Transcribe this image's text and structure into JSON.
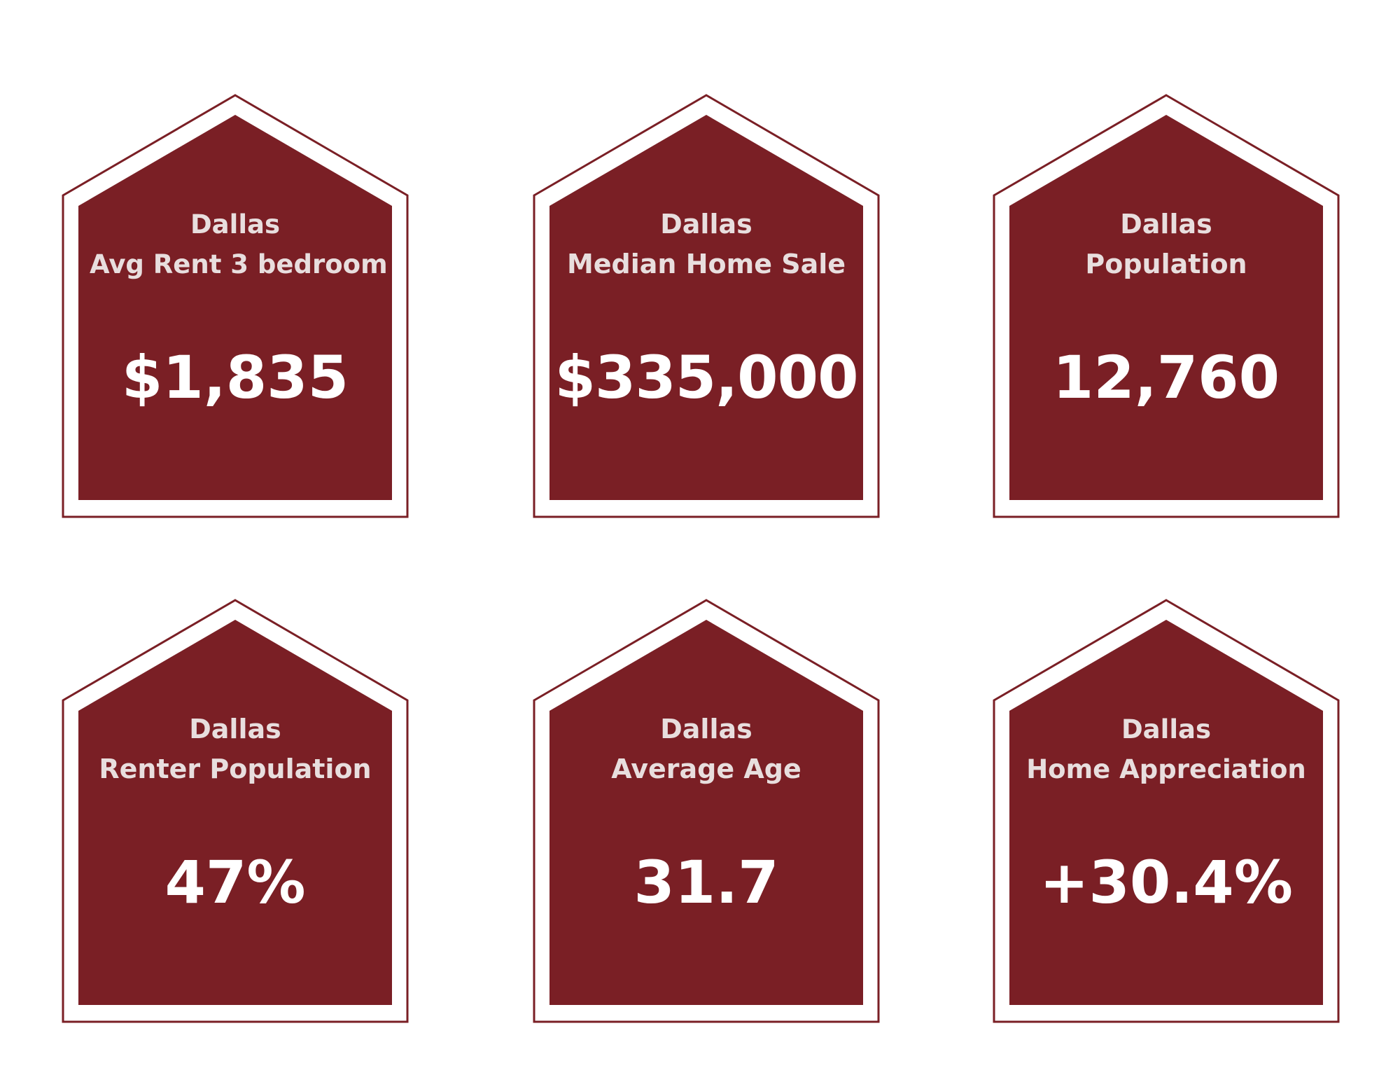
{
  "colors": {
    "accent": "#7a1f25",
    "label_text": "#e8dede",
    "value_text": "#ffffff",
    "background": "#ffffff"
  },
  "cards": [
    {
      "city": "Dallas",
      "metric": "Avg Rent 3 bedroom",
      "value": "$1,835"
    },
    {
      "city": "Dallas",
      "metric": "Median Home Sale",
      "value": "$335,000"
    },
    {
      "city": "Dallas",
      "metric": "Population",
      "value": "12,760"
    },
    {
      "city": "Dallas",
      "metric": "Renter Population",
      "value": "47%"
    },
    {
      "city": "Dallas",
      "metric": "Average Age",
      "value": "31.7"
    },
    {
      "city": "Dallas",
      "metric": "Home Appreciation",
      "value": "+30.4%"
    }
  ]
}
